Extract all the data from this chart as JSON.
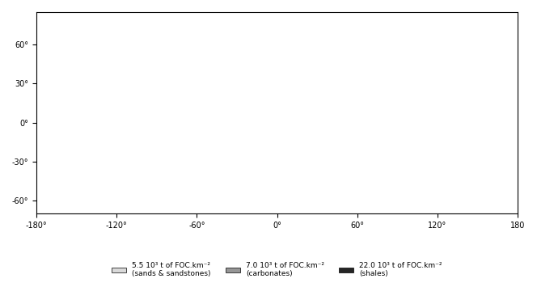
{
  "title": "",
  "legend_items": [
    {
      "label": "5.5 10³ t of FOC.km⁻²\n(sands & sandstones)",
      "color": "#d9d9d9"
    },
    {
      "label": "7.0 10³ t of FOC.km⁻²\n(carbonates)",
      "color": "#969696"
    },
    {
      "label": "22.0 10³ t of FOC.km⁻²\n(shales)",
      "color": "#252525"
    }
  ],
  "xticks": [
    -180,
    -120,
    -60,
    0,
    60,
    120,
    180
  ],
  "xtick_labels": [
    "-180°",
    "-120°",
    "-60°",
    "0°",
    "60°",
    "120°",
    "180"
  ],
  "yticks": [
    -60,
    -30,
    0,
    30,
    60
  ],
  "ytick_labels": [
    "-60°",
    "-30°",
    "0°",
    "30°",
    "60°"
  ],
  "xlim": [
    -180,
    180
  ],
  "ylim": [
    -70,
    85
  ],
  "background_color": "#ffffff",
  "ocean_color": "#ffffff",
  "border_color": "#000000",
  "figsize": [
    6.64,
    3.76
  ],
  "dpi": 100
}
